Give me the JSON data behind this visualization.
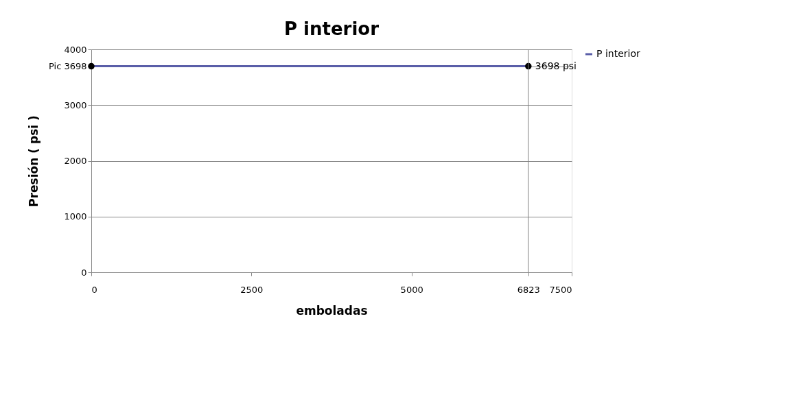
{
  "chart_data": {
    "type": "line",
    "title": "P interior",
    "xlabel": "emboladas",
    "ylabel": "Presión ( psi )",
    "x": [
      0,
      6823
    ],
    "series": [
      {
        "name": "P interior",
        "color": "#5a5ea8",
        "values": [
          3698,
          3698
        ]
      },
      {
        "type": "scatter",
        "color": "#000000",
        "values": [
          3698,
          3698
        ],
        "marker": "circle"
      }
    ],
    "xlim": [
      0,
      7500
    ],
    "xticks": [
      0,
      2500,
      5000,
      6823,
      7500
    ],
    "ylim": [
      0,
      4000
    ],
    "yticks": [
      0,
      1000,
      2000,
      3000,
      {
        "value": 3698,
        "label": "Pic 3698"
      },
      4000
    ],
    "ref_lines": [
      {
        "axis": "x",
        "value": 6823,
        "color": "#808080"
      }
    ],
    "annotations": [
      {
        "text": "3698 psi",
        "x": 6823,
        "y": 3698
      }
    ],
    "grid": "y",
    "legend": "right"
  }
}
